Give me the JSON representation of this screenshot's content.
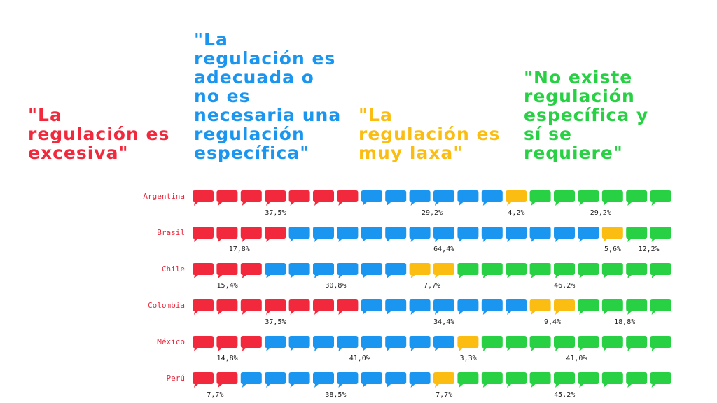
{
  "chart_data": {
    "type": "icon-bar",
    "icons_per_row": 20,
    "categories": [
      "Argentina",
      "Brasil",
      "Chile",
      "Colombia",
      "México",
      "Perú"
    ],
    "series": [
      {
        "name": "\"La regulación es excesiva\"",
        "color": "#f2283c",
        "values": [
          37.5,
          17.8,
          15.4,
          37.5,
          14.8,
          7.7
        ],
        "value_labels": [
          "37,5%",
          "17,8%",
          "15,4%",
          "37,5%",
          "14,8%",
          "7,7%"
        ]
      },
      {
        "name": "\"La regulación es adecuada o no es necesaria una regulación específica\"",
        "color": "#1a96f0",
        "values": [
          29.2,
          64.4,
          30.8,
          34.4,
          41.0,
          38.5
        ],
        "value_labels": [
          "29,2%",
          "64,4%",
          "30,8%",
          "34,4%",
          "41,0%",
          "38,5%"
        ]
      },
      {
        "name": "\"La regulación es muy laxa\"",
        "color": "#fbbd12",
        "values": [
          4.2,
          5.6,
          7.7,
          9.4,
          3.3,
          7.7
        ],
        "value_labels": [
          "4,2%",
          "5,6%",
          "7,7%",
          "9,4%",
          "3,3%",
          "7,7%"
        ]
      },
      {
        "name": "\"No existe regulación específica y sí se requiere\"",
        "color": "#28d144",
        "values": [
          29.2,
          12.2,
          46.2,
          18.8,
          41.0,
          45.2
        ],
        "value_labels": [
          "29,2%",
          "12,2%",
          "46,2%",
          "18,8%",
          "41,0%",
          "45,2%"
        ]
      }
    ]
  }
}
